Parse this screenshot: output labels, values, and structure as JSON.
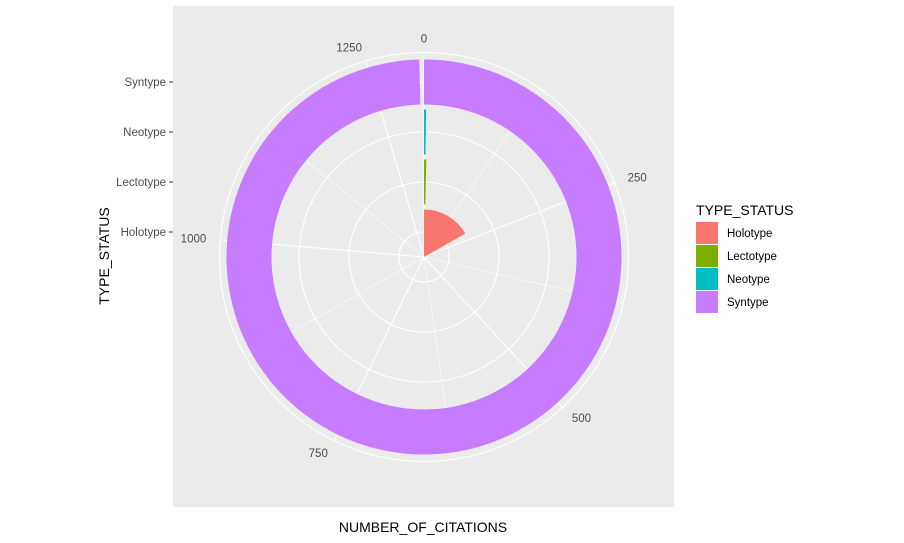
{
  "chart_data": {
    "type": "bar",
    "coord": "polar",
    "categories": [
      "Holotype",
      "Lectotype",
      "Neotype",
      "Syntype"
    ],
    "values": [
      220,
      5,
      3,
      1305
    ],
    "xlabel": "NUMBER_OF_CITATIONS",
    "ylabel": "TYPE_STATUS",
    "theta_ticks": [
      0,
      250,
      500,
      750,
      1000,
      1250
    ],
    "theta_max": 1310,
    "grid": true,
    "legend": {
      "title": "TYPE_STATUS",
      "placement": "right",
      "entries": [
        "Holotype",
        "Lectotype",
        "Neotype",
        "Syntype"
      ]
    },
    "colors": [
      "#F8766D",
      "#7CAE00",
      "#00BFC4",
      "#C77CFF"
    ],
    "panel_background": "#EBEBEB",
    "grid_color": "#FFFFFF"
  }
}
